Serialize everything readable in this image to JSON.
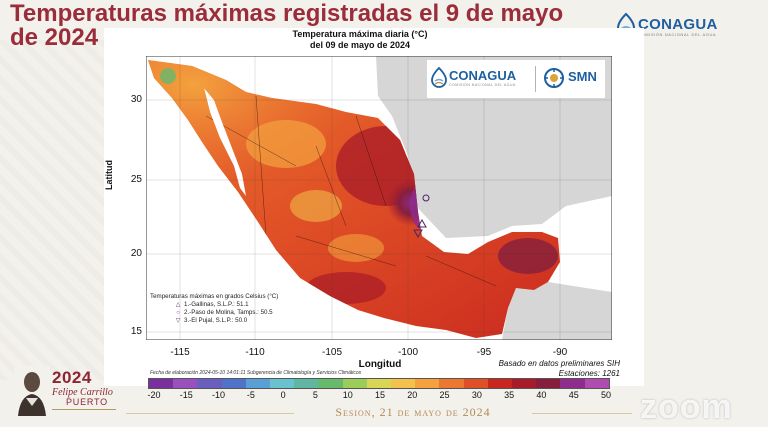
{
  "slide": {
    "title": "Temperaturas máximas registradas el 9 de mayo de 2024",
    "footer": "Sesion, 21 de mayo de 2024",
    "emblem": {
      "year": "2024",
      "name": "Felipe Carrillo",
      "place": "PUERTO"
    },
    "top_logo": {
      "name": "CONAGUA",
      "subtitle": "COMISIÓN NACIONAL DEL AGUA",
      "icon": "conagua-logo-icon"
    },
    "watermark": "zoom"
  },
  "map": {
    "title_line1": "Temperatura máxima diaria (°C)",
    "title_line2": "del 09 de mayo de 2024",
    "logos": {
      "conagua": "CONAGUA",
      "conagua_sub": "COMISIÓN NACIONAL DEL AGUA",
      "smn": "SMN"
    },
    "y_axis": {
      "label": "Latitud",
      "ticks": [
        "30",
        "25",
        "20",
        "15"
      ]
    },
    "x_axis": {
      "label": "Longitud",
      "ticks": [
        "-115",
        "-110",
        "-105",
        "-100",
        "-95",
        "-90"
      ]
    },
    "legend": {
      "title": "Temperaturas máximas en grados Celsius (°C)",
      "stations": [
        {
          "marker": "△",
          "label": "1.-Gallinas, S.L.P.: 51.1"
        },
        {
          "marker": "○",
          "label": "2.-Paso de Molina, Tamps.: 50.5"
        },
        {
          "marker": "▽",
          "label": "3.-El Pujal, S.L.P.: 50.0"
        }
      ]
    },
    "source_note": "Basado en datos preliminares SIH",
    "stations_count": "Estaciones:   1261",
    "elaboration_note": "Fecha de elaboración 2024-05-10 14:01:11 Subgerencia de Climatología y Servicios Climáticos",
    "colorbar": {
      "labels": [
        "-20",
        "-15",
        "-10",
        "-5",
        "0",
        "5",
        "10",
        "15",
        "20",
        "25",
        "30",
        "35",
        "40",
        "45",
        "50"
      ],
      "colors": [
        "#7b2f9e",
        "#9b4fbf",
        "#6a5fbf",
        "#4f73c9",
        "#5aa0d6",
        "#68c2d0",
        "#5fb7a2",
        "#67b96b",
        "#9ccd5b",
        "#d9d656",
        "#f3c24c",
        "#f3a23e",
        "#ec7731",
        "#e05026",
        "#c8261f",
        "#a81b28",
        "#861f3d",
        "#8f2c8c",
        "#b04bb1"
      ]
    }
  }
}
